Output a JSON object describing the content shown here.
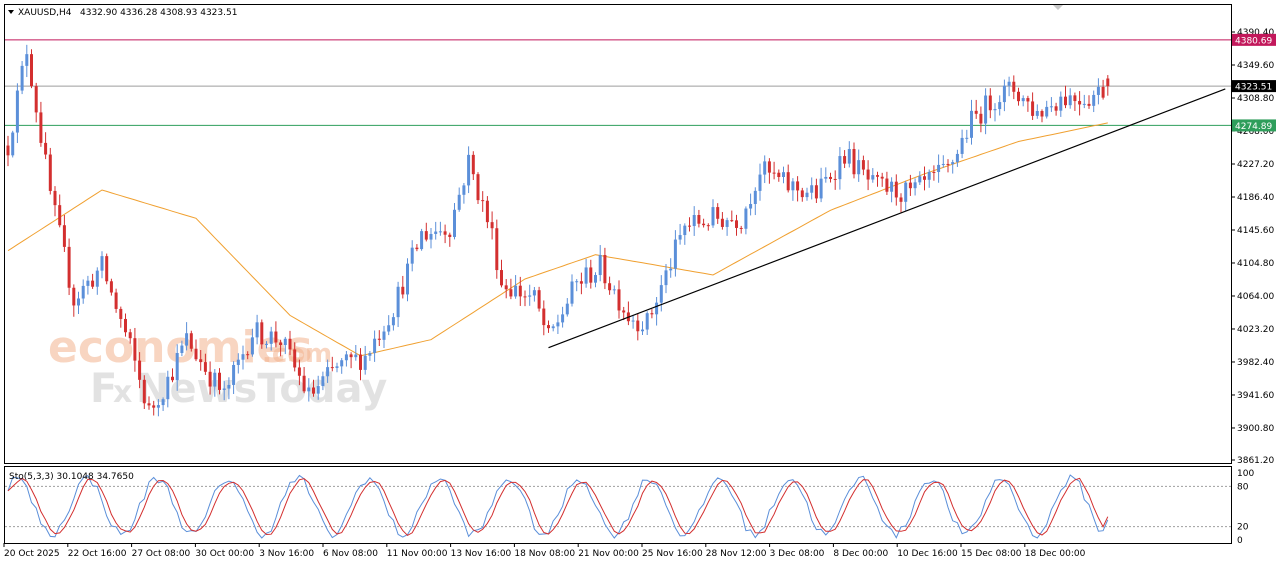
{
  "header": {
    "symbol": "XAUUSD,H4",
    "ohlc": "4332.90 4336.28 4308.93 4323.51"
  },
  "watermark": {
    "line1": "economies",
    "line2_f": "F",
    "line2_x": "x",
    "line2_rest": "NewsToday",
    "line1_suffix": ".com"
  },
  "price_tags": {
    "resistance": {
      "label": "4380.69",
      "color": "#c2185b"
    },
    "current": {
      "label": "4323.51",
      "color": "#000000"
    },
    "support": {
      "label": "4274.89",
      "color": "#2e9e5b"
    }
  },
  "chart_data": {
    "type": "candlestick",
    "symbol": "XAUUSD",
    "timeframe": "H4",
    "y_ticks": [
      "4390.40",
      "4349.60",
      "4308.80",
      "4268.00",
      "4227.20",
      "4186.40",
      "4145.60",
      "4104.80",
      "4064.00",
      "4023.20",
      "3982.40",
      "3941.60",
      "3900.80",
      "3861.20"
    ],
    "ylim": [
      3861.2,
      4390.4
    ],
    "x_ticks": [
      "20 Oct 2025",
      "22 Oct 16:00",
      "27 Oct 08:00",
      "30 Oct 00:00",
      "3 Nov 16:00",
      "6 Nov 08:00",
      "11 Nov 00:00",
      "13 Nov 16:00",
      "18 Nov 08:00",
      "21 Nov 00:00",
      "25 Nov 16:00",
      "28 Nov 12:00",
      "3 Dec 08:00",
      "8 Dec 00:00",
      "10 Dec 16:00",
      "15 Dec 08:00",
      "18 Dec 00:00"
    ],
    "horizontal_lines": [
      {
        "name": "resistance",
        "value": 4380.69,
        "color": "#c2185b"
      },
      {
        "name": "current",
        "value": 4323.51,
        "color": "#9e9e9e"
      },
      {
        "name": "support",
        "value": 4274.89,
        "color": "#2e9e5b"
      }
    ],
    "trendline": {
      "from": {
        "bar": 115,
        "price": 4000
      },
      "to": {
        "bar": 259,
        "price": 4320
      }
    },
    "moving_average": {
      "color": "#f0a030",
      "anchors": [
        [
          0,
          4120
        ],
        [
          20,
          4195
        ],
        [
          40,
          4160
        ],
        [
          60,
          4040
        ],
        [
          75,
          3990
        ],
        [
          90,
          4010
        ],
        [
          110,
          4085
        ],
        [
          125,
          4115
        ],
        [
          150,
          4090
        ],
        [
          175,
          4170
        ],
        [
          195,
          4215
        ],
        [
          215,
          4255
        ],
        [
          234,
          4278
        ]
      ]
    },
    "candle_colors": {
      "up": "#5b8fd9",
      "down": "#d32f2f"
    },
    "price_path": [
      [
        0,
        4250
      ],
      [
        4,
        4370
      ],
      [
        9,
        4190
      ],
      [
        14,
        4060
      ],
      [
        20,
        4100
      ],
      [
        26,
        4000
      ],
      [
        30,
        3920
      ],
      [
        34,
        3960
      ],
      [
        38,
        4010
      ],
      [
        46,
        3940
      ],
      [
        52,
        4020
      ],
      [
        58,
        4010
      ],
      [
        64,
        3940
      ],
      [
        70,
        3975
      ],
      [
        76,
        3990
      ],
      [
        82,
        4050
      ],
      [
        88,
        4140
      ],
      [
        94,
        4150
      ],
      [
        98,
        4230
      ],
      [
        103,
        4140
      ],
      [
        105,
        4080
      ],
      [
        112,
        4060
      ],
      [
        115,
        4010
      ],
      [
        121,
        4080
      ],
      [
        126,
        4100
      ],
      [
        132,
        4040
      ],
      [
        136,
        4030
      ],
      [
        140,
        4090
      ],
      [
        144,
        4150
      ],
      [
        150,
        4160
      ],
      [
        156,
        4160
      ],
      [
        160,
        4220
      ],
      [
        166,
        4200
      ],
      [
        172,
        4190
      ],
      [
        178,
        4240
      ],
      [
        184,
        4200
      ],
      [
        192,
        4190
      ],
      [
        200,
        4220
      ],
      [
        205,
        4280
      ],
      [
        210,
        4310
      ],
      [
        214,
        4320
      ],
      [
        219,
        4290
      ],
      [
        224,
        4310
      ],
      [
        230,
        4310
      ],
      [
        234,
        4323
      ]
    ],
    "indicator": {
      "name": "Stochastic",
      "label": "Sto(5,3,3) 30.1048 34.7650",
      "main": 30.1048,
      "signal": 34.765,
      "ylim": [
        0,
        100
      ],
      "levels": [
        20,
        80
      ],
      "y_ticks": [
        "100",
        "80",
        "20",
        "0"
      ],
      "main_color": "#5b8fd9",
      "signal_color": "#d32f2f"
    }
  }
}
